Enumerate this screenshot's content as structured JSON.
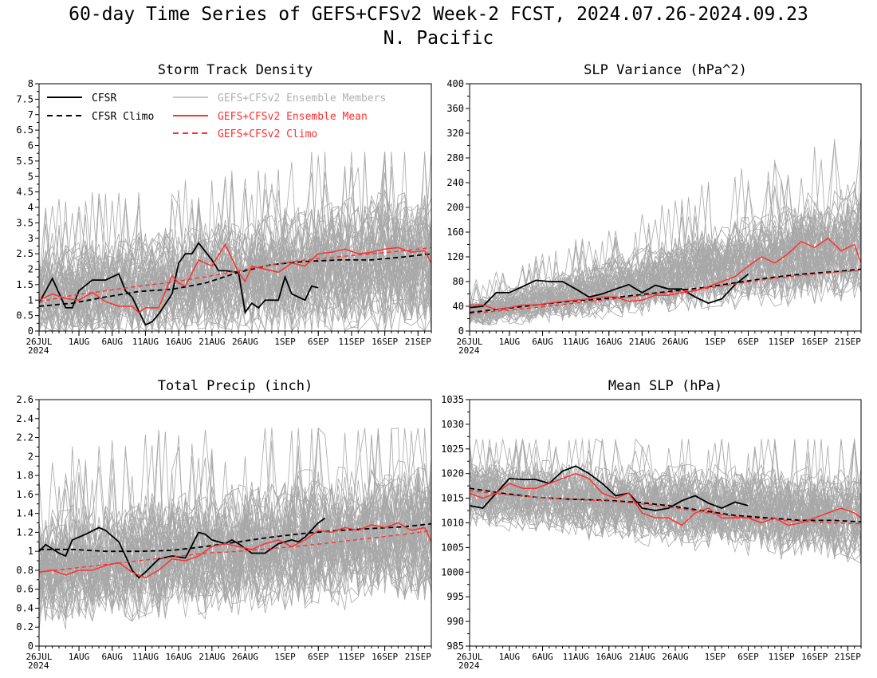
{
  "page": {
    "title_line1": "60-day Time Series of GEFS+CFSv2 Week-2 FCST, 2024.07.26-2024.09.23",
    "title_line2": "N. Pacific"
  },
  "legend": {
    "entries": [
      {
        "label": "CFSR",
        "style": "solid",
        "color": "#000000"
      },
      {
        "label": "CFSR Climo",
        "style": "dashed",
        "color": "#000000"
      },
      {
        "label": "GEFS+CFSv2 Ensemble Members",
        "style": "solid",
        "color": "#b0b0b0"
      },
      {
        "label": "GEFS+CFSv2 Ensemble Mean",
        "style": "solid",
        "color": "#ff3030"
      },
      {
        "label": "GEFS+CFSv2 Climo",
        "style": "dashed",
        "color": "#ff3030"
      }
    ]
  },
  "colors": {
    "cfsr": "#000000",
    "ensemble_member": "#a8a8a8",
    "ensemble_mean": "#ff3030",
    "gefs_climo": "#ff3030"
  },
  "x_axis": {
    "tick_labels": [
      "26JUL",
      "1AUG",
      "6AUG",
      "11AUG",
      "16AUG",
      "21AUG",
      "26AUG",
      "1SEP",
      "6SEP",
      "11SEP",
      "16SEP",
      "21SEP"
    ],
    "tick_days": [
      0,
      6,
      11,
      16,
      21,
      26,
      31,
      37,
      42,
      47,
      52,
      57
    ],
    "year_label": "2024",
    "domain_days": [
      0,
      59
    ]
  },
  "chart_data": [
    {
      "type": "line",
      "title": "Storm Track Density",
      "ylim": [
        0,
        8
      ],
      "yticks": [
        "0",
        "0.5",
        "1",
        "1.5",
        "2",
        "2.5",
        "3",
        "3.5",
        "4",
        "4.5",
        "5",
        "5.5",
        "6",
        "6.5",
        "7",
        "7.5",
        "8"
      ],
      "ytick_values": [
        0,
        0.5,
        1,
        1.5,
        2,
        2.5,
        3,
        3.5,
        4,
        4.5,
        5,
        5.5,
        6,
        6.5,
        7,
        7.5,
        8
      ],
      "has_legend": true,
      "members_spread": {
        "center_start": 1.1,
        "center_end": 2.3,
        "width_start": 2.2,
        "width_end": 3.4,
        "max_peak": 5.8,
        "min": 0
      },
      "series": [
        {
          "name": "CFSR",
          "x": [
            0,
            2,
            4,
            5,
            6,
            8,
            10,
            12,
            13,
            14,
            16,
            17,
            18,
            20,
            21,
            22,
            23,
            24,
            26,
            27,
            28,
            30,
            31,
            32,
            33,
            34,
            36,
            37,
            38,
            40,
            41,
            42
          ],
          "y": [
            0.9,
            1.7,
            0.75,
            0.75,
            1.3,
            1.65,
            1.65,
            1.85,
            1.3,
            1.1,
            0.2,
            0.3,
            0.55,
            1.2,
            2.2,
            2.5,
            2.5,
            2.85,
            2.3,
            1.95,
            1.95,
            1.9,
            0.6,
            0.9,
            0.75,
            1.0,
            1.0,
            1.75,
            1.2,
            1.0,
            1.45,
            1.4
          ]
        },
        {
          "name": "CFSR Climo",
          "x": [
            0,
            5,
            10,
            15,
            20,
            25,
            30,
            35,
            40,
            45,
            50,
            55,
            59
          ],
          "y": [
            0.8,
            0.9,
            1.1,
            1.28,
            1.35,
            1.55,
            1.9,
            2.15,
            2.25,
            2.3,
            2.3,
            2.4,
            2.5
          ]
        },
        {
          "name": "GEFS+CFSv2 Ensemble Mean",
          "x": [
            0,
            2,
            4,
            6,
            8,
            10,
            12,
            14,
            15,
            16,
            18,
            20,
            21,
            22,
            24,
            26,
            28,
            30,
            31,
            32,
            34,
            36,
            38,
            40,
            42,
            44,
            46,
            48,
            50,
            52,
            54,
            56,
            58,
            59
          ],
          "y": [
            1.0,
            1.2,
            1.05,
            1.0,
            1.25,
            0.95,
            0.8,
            0.8,
            0.6,
            0.75,
            0.75,
            1.8,
            1.55,
            1.45,
            2.3,
            2.1,
            2.8,
            1.9,
            1.6,
            2.1,
            2.0,
            1.9,
            2.2,
            2.1,
            2.5,
            2.55,
            2.65,
            2.5,
            2.55,
            2.65,
            2.7,
            2.55,
            2.6,
            2.2
          ]
        },
        {
          "name": "GEFS+CFSv2 Climo",
          "x": [
            0,
            5,
            10,
            15,
            20,
            25,
            30,
            35,
            40,
            45,
            50,
            55,
            59
          ],
          "y": [
            0.95,
            1.15,
            1.3,
            1.45,
            1.58,
            1.75,
            1.95,
            2.15,
            2.3,
            2.4,
            2.5,
            2.6,
            2.7
          ]
        }
      ]
    },
    {
      "type": "line",
      "title": "SLP Variance (hPa^2)",
      "ylim": [
        0,
        400
      ],
      "yticks": [
        "0",
        "40",
        "80",
        "120",
        "160",
        "200",
        "240",
        "280",
        "320",
        "360",
        "400"
      ],
      "ytick_values": [
        0,
        40,
        80,
        120,
        160,
        200,
        240,
        280,
        320,
        360,
        400
      ],
      "has_legend": false,
      "members_spread": {
        "center_start": 30,
        "center_end": 150,
        "width_start": 35,
        "width_end": 140,
        "max_peak": 315,
        "min": 10
      },
      "series": [
        {
          "name": "CFSR",
          "x": [
            0,
            2,
            4,
            6,
            8,
            10,
            12,
            14,
            16,
            18,
            20,
            22,
            24,
            26,
            28,
            30,
            32,
            34,
            36,
            38,
            40,
            42
          ],
          "y": [
            38,
            40,
            62,
            62,
            72,
            82,
            80,
            80,
            68,
            55,
            60,
            68,
            75,
            62,
            74,
            68,
            68,
            55,
            45,
            52,
            75,
            92
          ]
        },
        {
          "name": "CFSR Climo",
          "x": [
            0,
            5,
            10,
            15,
            20,
            25,
            30,
            35,
            40,
            45,
            50,
            55,
            59
          ],
          "y": [
            30,
            36,
            42,
            48,
            52,
            58,
            64,
            70,
            78,
            86,
            92,
            96,
            100
          ]
        },
        {
          "name": "GEFS+CFSv2 Ensemble Mean",
          "x": [
            0,
            2,
            4,
            6,
            8,
            10,
            12,
            14,
            16,
            18,
            20,
            22,
            24,
            26,
            28,
            30,
            32,
            34,
            36,
            38,
            40,
            42,
            44,
            46,
            48,
            50,
            52,
            54,
            56,
            58,
            59
          ],
          "y": [
            42,
            42,
            35,
            38,
            42,
            42,
            45,
            48,
            50,
            52,
            55,
            55,
            48,
            50,
            58,
            58,
            62,
            65,
            72,
            80,
            88,
            105,
            120,
            110,
            125,
            145,
            135,
            150,
            130,
            140,
            110
          ]
        },
        {
          "name": "GEFS+CFSv2 Climo",
          "x": [
            0,
            5,
            10,
            15,
            20,
            25,
            30,
            35,
            40,
            45,
            50,
            55,
            59
          ],
          "y": [
            28,
            33,
            38,
            44,
            50,
            56,
            62,
            68,
            76,
            84,
            90,
            95,
            98
          ]
        }
      ]
    },
    {
      "type": "line",
      "title": "Total Precip (inch)",
      "ylim": [
        0,
        2.6
      ],
      "yticks": [
        "0",
        "0.2",
        "0.4",
        "0.6",
        "0.8",
        "1",
        "1.2",
        "1.4",
        "1.6",
        "1.8",
        "2",
        "2.2",
        "2.4",
        "2.6"
      ],
      "ytick_values": [
        0,
        0.2,
        0.4,
        0.6,
        0.8,
        1,
        1.2,
        1.4,
        1.6,
        1.8,
        2,
        2.2,
        2.4,
        2.6
      ],
      "has_legend": false,
      "members_spread": {
        "center_start": 0.8,
        "center_end": 1.25,
        "width_start": 0.9,
        "width_end": 1.1,
        "max_peak": 2.3,
        "min": 0.15
      },
      "series": [
        {
          "name": "CFSR",
          "x": [
            0,
            1,
            3,
            4,
            5,
            7,
            9,
            10,
            12,
            14,
            15,
            16,
            18,
            20,
            22,
            24,
            25,
            26,
            28,
            29,
            30,
            32,
            34,
            36,
            38,
            39,
            40,
            42,
            43
          ],
          "y": [
            1.0,
            1.07,
            0.98,
            0.95,
            1.12,
            1.18,
            1.25,
            1.22,
            1.1,
            0.8,
            0.72,
            0.78,
            0.92,
            0.95,
            0.93,
            1.2,
            1.18,
            1.12,
            1.08,
            1.12,
            1.08,
            0.98,
            0.98,
            1.08,
            1.12,
            1.1,
            1.15,
            1.3,
            1.35
          ]
        },
        {
          "name": "CFSR Climo",
          "x": [
            0,
            5,
            10,
            15,
            20,
            25,
            30,
            35,
            40,
            45,
            50,
            55,
            59
          ],
          "y": [
            1.02,
            1.02,
            1.0,
            1.0,
            1.01,
            1.05,
            1.1,
            1.15,
            1.19,
            1.22,
            1.24,
            1.26,
            1.29
          ]
        },
        {
          "name": "GEFS+CFSv2 Ensemble Mean",
          "x": [
            0,
            2,
            4,
            6,
            8,
            10,
            12,
            14,
            16,
            18,
            20,
            22,
            24,
            26,
            28,
            30,
            32,
            34,
            36,
            38,
            40,
            42,
            44,
            46,
            48,
            50,
            52,
            54,
            56,
            58,
            59
          ],
          "y": [
            0.78,
            0.8,
            0.75,
            0.8,
            0.8,
            0.85,
            0.88,
            0.78,
            0.72,
            0.8,
            0.92,
            0.9,
            0.95,
            1.05,
            1.08,
            1.05,
            1.02,
            1.08,
            1.12,
            1.05,
            1.12,
            1.22,
            1.2,
            1.25,
            1.22,
            1.28,
            1.25,
            1.3,
            1.22,
            1.25,
            1.1
          ]
        },
        {
          "name": "GEFS+CFSv2 Climo",
          "x": [
            0,
            5,
            10,
            15,
            20,
            25,
            30,
            35,
            40,
            45,
            50,
            55,
            59
          ],
          "y": [
            0.78,
            0.82,
            0.86,
            0.9,
            0.94,
            0.98,
            1.0,
            1.03,
            1.06,
            1.1,
            1.14,
            1.18,
            1.22
          ]
        }
      ]
    },
    {
      "type": "line",
      "title": "Mean SLP (hPa)",
      "ylim": [
        985,
        1035
      ],
      "yticks": [
        "985",
        "990",
        "995",
        "1000",
        "1005",
        "1010",
        "1015",
        "1020",
        "1025",
        "1030",
        "1035"
      ],
      "ytick_values": [
        985,
        990,
        995,
        1000,
        1005,
        1010,
        1015,
        1020,
        1025,
        1030,
        1035
      ],
      "has_legend": false,
      "members_spread": {
        "center_start": 1016,
        "center_end": 1011,
        "width_start": 10,
        "width_end": 14,
        "max_peak": 1027,
        "min": 993
      },
      "series": [
        {
          "name": "CFSR",
          "x": [
            0,
            2,
            4,
            6,
            8,
            10,
            12,
            14,
            16,
            18,
            20,
            22,
            24,
            26,
            28,
            30,
            32,
            34,
            36,
            38,
            40,
            42
          ],
          "y": [
            1013.5,
            1013,
            1016,
            1019,
            1018.8,
            1018.8,
            1018,
            1020.5,
            1021.5,
            1020,
            1018,
            1015.5,
            1016,
            1013,
            1012.5,
            1013,
            1014.5,
            1015.5,
            1014,
            1013,
            1014.2,
            1013.5
          ]
        },
        {
          "name": "CFSR Climo",
          "x": [
            0,
            5,
            10,
            15,
            20,
            25,
            30,
            35,
            40,
            45,
            50,
            55,
            59
          ],
          "y": [
            1017,
            1016,
            1015.2,
            1014.8,
            1014.6,
            1014.2,
            1013.5,
            1012.5,
            1011.5,
            1011,
            1010.5,
            1010.5,
            1010.2
          ]
        },
        {
          "name": "GEFS+CFSv2 Ensemble Mean",
          "x": [
            0,
            2,
            4,
            6,
            8,
            10,
            12,
            14,
            16,
            18,
            20,
            22,
            24,
            26,
            28,
            30,
            32,
            34,
            36,
            38,
            40,
            42,
            44,
            46,
            48,
            50,
            52,
            54,
            56,
            58,
            59
          ],
          "y": [
            1016,
            1015,
            1016,
            1018,
            1017,
            1017,
            1018,
            1019,
            1020,
            1019,
            1016,
            1015,
            1016,
            1012,
            1011,
            1011,
            1009.5,
            1012,
            1013,
            1011,
            1011,
            1011,
            1010,
            1011,
            1009.5,
            1010,
            1011,
            1012,
            1013,
            1012,
            1011
          ]
        },
        {
          "name": "GEFS+CFSv2 Climo",
          "x": [
            0,
            5,
            10,
            15,
            20,
            25,
            30,
            35,
            40,
            45,
            50,
            55,
            59
          ],
          "y": [
            1016.5,
            1015.8,
            1015.2,
            1014.8,
            1014.5,
            1014,
            1013.2,
            1012.2,
            1011.3,
            1010.7,
            1010.3,
            1010,
            1009.8
          ]
        }
      ]
    }
  ]
}
